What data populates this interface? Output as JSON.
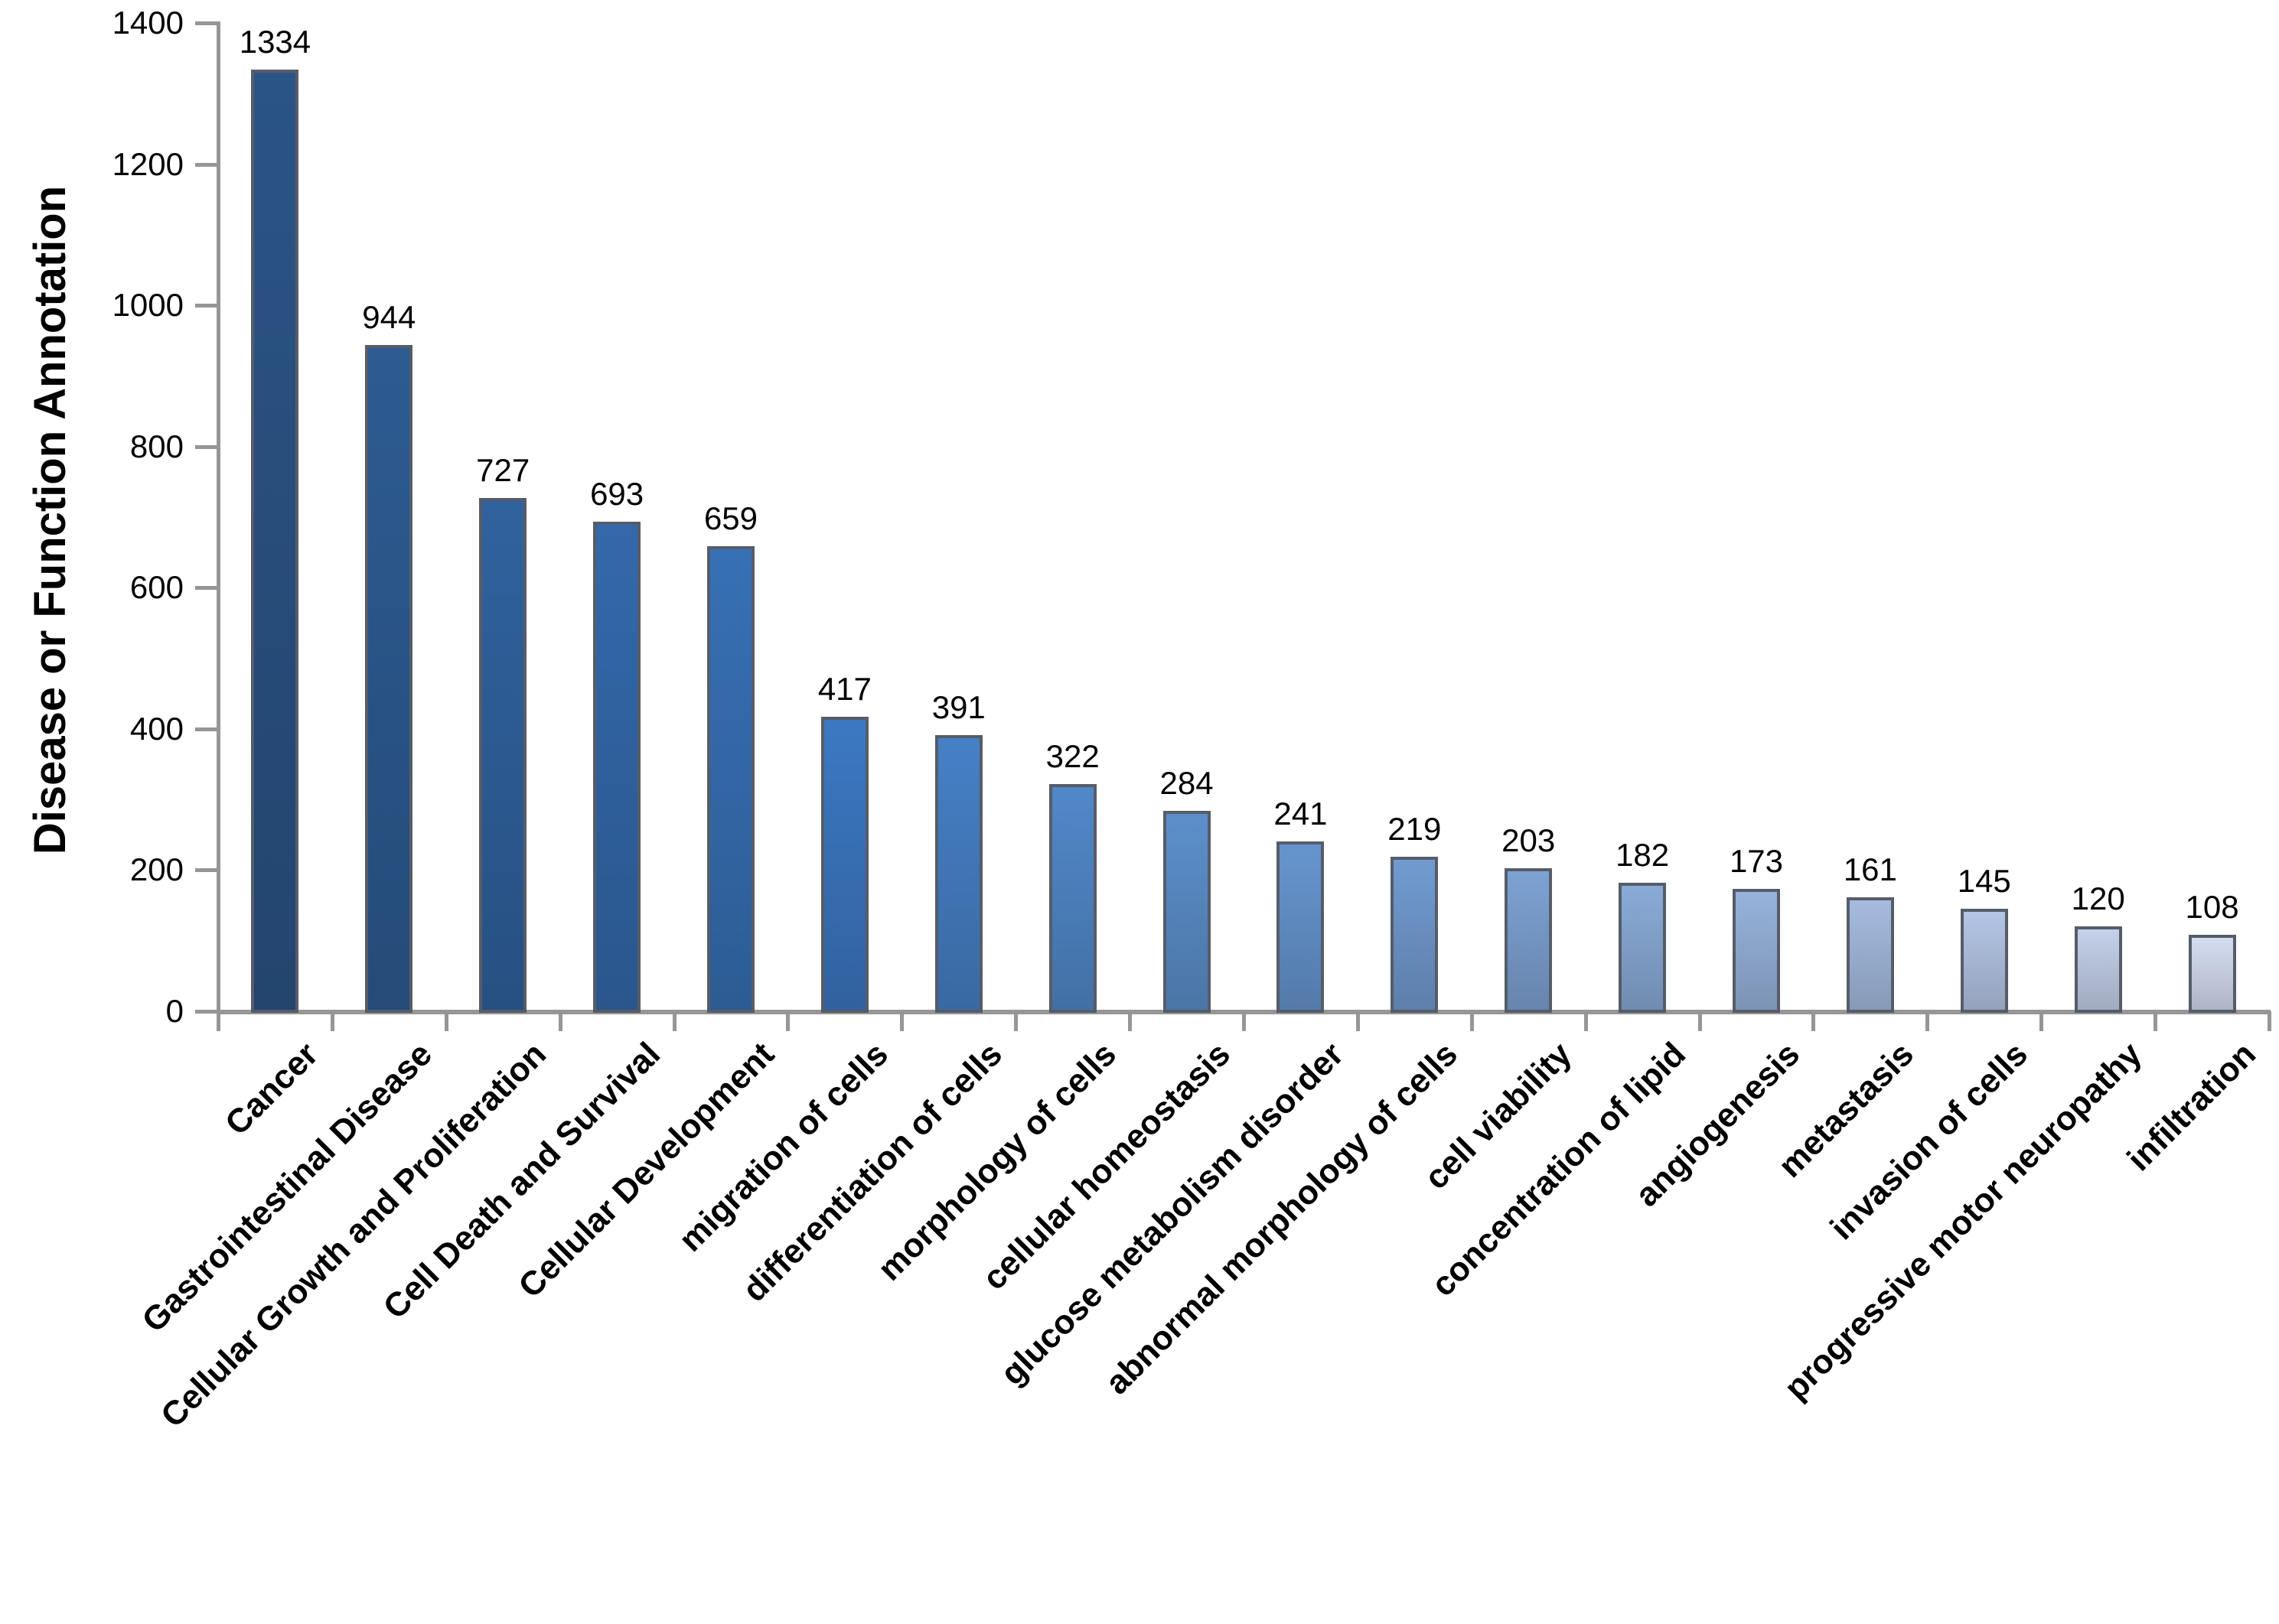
{
  "chart_data": {
    "type": "bar",
    "title": "",
    "xlabel": "",
    "ylabel": "Disease or Function Annotation",
    "ylim": [
      0,
      1400
    ],
    "yticks": [
      0,
      200,
      400,
      600,
      800,
      1000,
      1200,
      1400
    ],
    "grid": false,
    "legend": false,
    "categories": [
      "Cancer",
      "Gastrointestinal Disease",
      "Cellular Growth and Proliferation",
      "Cell Death and Survival",
      "Cellular Development",
      "migration of cells",
      "differentiation of cells",
      "morphology of cells",
      "cellular homeostasis",
      "glucose metabolism disorder",
      "abnormal morphology of cells",
      "cell viability",
      "concentration of lipid",
      "angiogenesis",
      "metastasis",
      "invasion of cells",
      "progressive motor neuropathy",
      "infiltration"
    ],
    "values": [
      1334,
      944,
      727,
      693,
      659,
      417,
      391,
      322,
      284,
      241,
      219,
      203,
      182,
      173,
      161,
      145,
      120,
      108
    ],
    "bar_colors": [
      "#2B5486",
      "#2D5B92",
      "#30629E",
      "#3369AB",
      "#3770B5",
      "#3C78C2",
      "#4680C6",
      "#5188C9",
      "#5C8FCB",
      "#6695CE",
      "#719BD0",
      "#7DA2D3",
      "#8AABD7",
      "#97B3DB",
      "#A5BCDF",
      "#B4C6E5",
      "#C4D1EA",
      "#D4DDF0"
    ],
    "bar_border_color": "#565D69",
    "axis_color": "#969696",
    "text_color": "#000000"
  }
}
